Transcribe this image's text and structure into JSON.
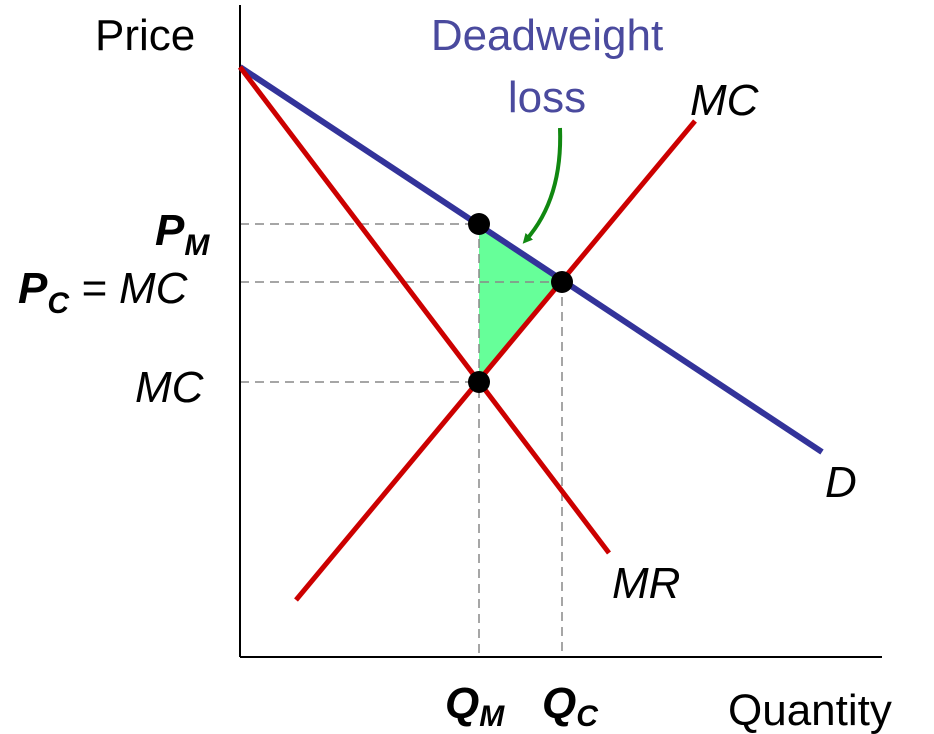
{
  "axes": {
    "y_label": "Price",
    "x_label": "Quantity"
  },
  "annotation": {
    "lines": [
      "Deadweight",
      "loss"
    ]
  },
  "curves": [
    {
      "label": "D"
    },
    {
      "label": "MC"
    },
    {
      "label": "MR"
    }
  ],
  "y_labels": [
    {
      "main": "P",
      "sub": "M"
    },
    {
      "main": "P",
      "sub": "C",
      "suffix": "= MC"
    },
    {
      "main": "MC"
    }
  ],
  "x_labels": [
    {
      "main": "Q",
      "sub": "M"
    },
    {
      "main": "Q",
      "sub": "C"
    }
  ]
}
